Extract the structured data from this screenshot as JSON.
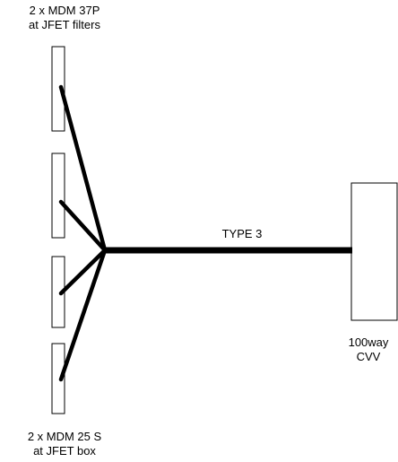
{
  "labels": {
    "top": {
      "line1": "2 x MDM 37P",
      "line2": "at JFET filters"
    },
    "bottom": {
      "line1": "2 x MDM 25 S",
      "line2": "at JFET box"
    },
    "cable": "TYPE 3",
    "right": {
      "line1": "100way",
      "line2": "CVV"
    }
  },
  "colors": {
    "stroke": "#000000",
    "background": "#ffffff"
  }
}
